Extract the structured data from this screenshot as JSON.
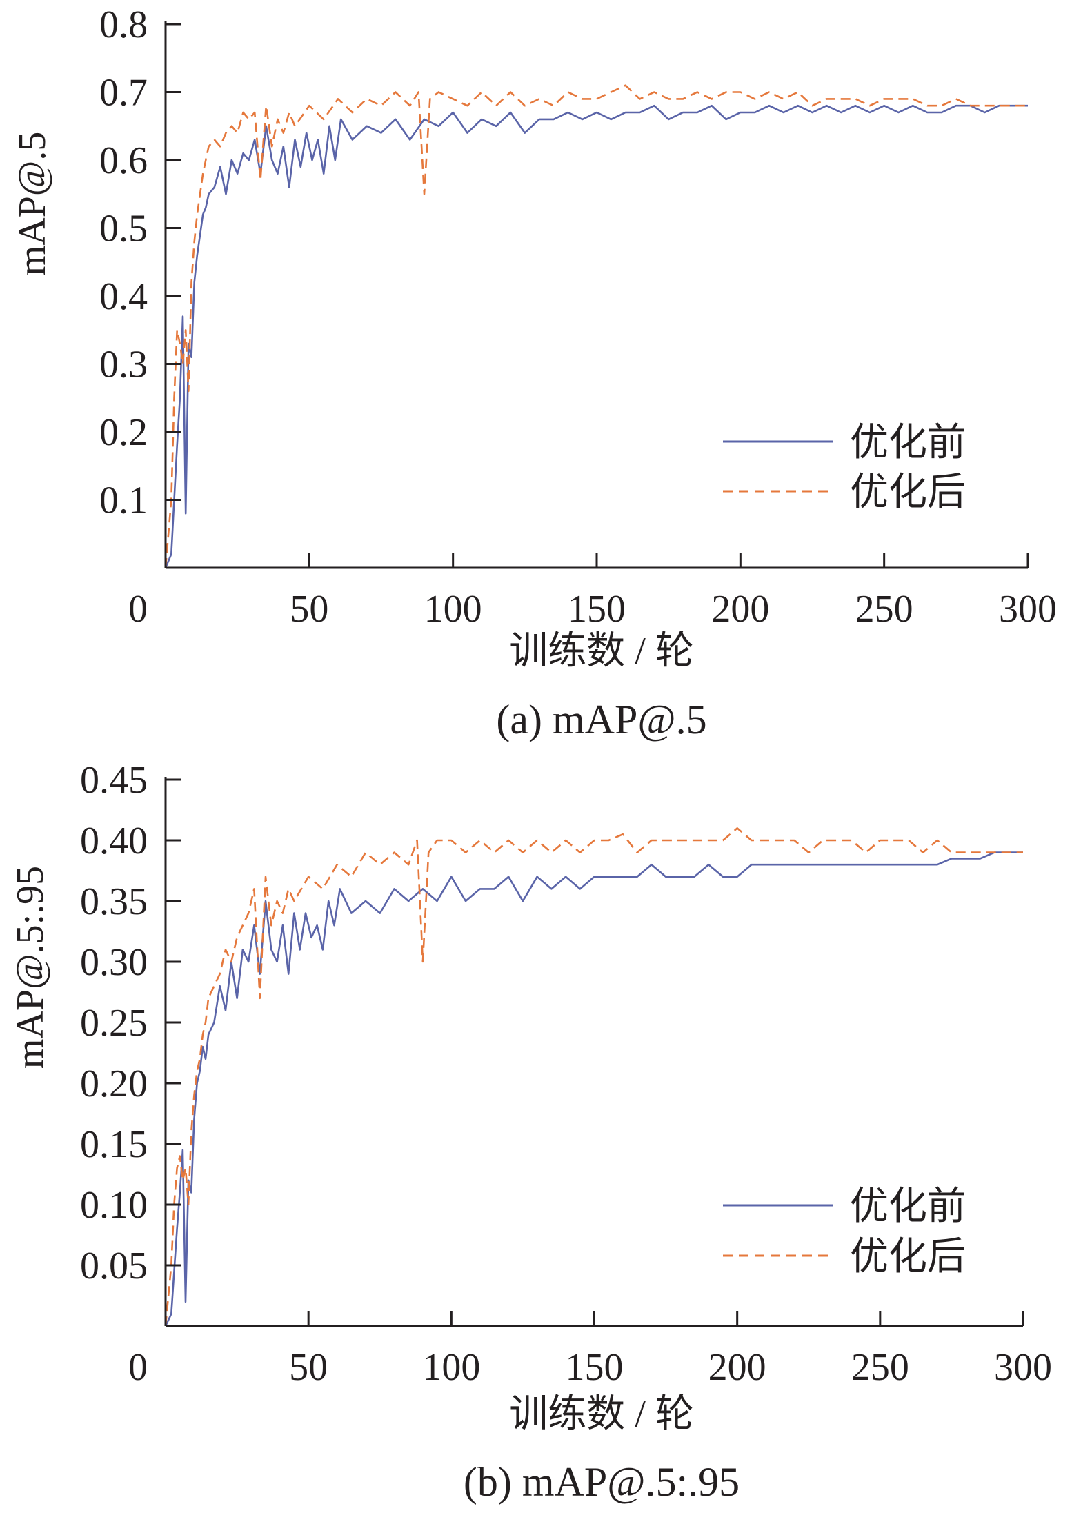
{
  "colors": {
    "before": "#5a64a8",
    "after": "#e5783c",
    "axis": "#231f20"
  },
  "chart_data": [
    {
      "type": "line",
      "caption": "(a)  mAP@.5",
      "xlabel": "训练数 / 轮",
      "ylabel": "mAP@.5",
      "xlim": [
        0,
        300
      ],
      "ylim": [
        0,
        0.8
      ],
      "x_ticks": [
        0,
        50,
        100,
        150,
        200,
        250,
        300
      ],
      "x_tick_labels": [
        "0",
        "50",
        "100",
        "150",
        "200",
        "250",
        "300"
      ],
      "y_ticks": [
        0.1,
        0.2,
        0.3,
        0.4,
        0.5,
        0.6,
        0.7,
        0.8
      ],
      "y_tick_labels": [
        "0.1",
        "0.2",
        "0.3",
        "0.4",
        "0.5",
        "0.6",
        "0.7",
        "0.8"
      ],
      "legend_position": "lower-right",
      "grid": false,
      "series": [
        {
          "name": "优化前",
          "style": "solid",
          "color_key": "before",
          "x": [
            0,
            2,
            4,
            5,
            6,
            7,
            8,
            9,
            10,
            11,
            12,
            13,
            14,
            15,
            17,
            19,
            21,
            23,
            25,
            27,
            29,
            31,
            33,
            35,
            37,
            39,
            41,
            43,
            45,
            47,
            49,
            51,
            53,
            55,
            57,
            59,
            61,
            65,
            70,
            75,
            80,
            85,
            90,
            95,
            100,
            105,
            110,
            115,
            120,
            125,
            130,
            135,
            140,
            145,
            150,
            155,
            160,
            165,
            170,
            175,
            180,
            185,
            190,
            195,
            200,
            205,
            210,
            215,
            220,
            225,
            230,
            235,
            240,
            245,
            250,
            255,
            260,
            265,
            270,
            275,
            280,
            285,
            290,
            295,
            300
          ],
          "y": [
            0.0,
            0.02,
            0.18,
            0.25,
            0.37,
            0.08,
            0.33,
            0.31,
            0.42,
            0.46,
            0.49,
            0.52,
            0.53,
            0.55,
            0.56,
            0.59,
            0.55,
            0.6,
            0.58,
            0.61,
            0.6,
            0.63,
            0.58,
            0.65,
            0.6,
            0.58,
            0.62,
            0.56,
            0.63,
            0.59,
            0.64,
            0.6,
            0.63,
            0.58,
            0.65,
            0.6,
            0.66,
            0.63,
            0.65,
            0.64,
            0.66,
            0.63,
            0.66,
            0.65,
            0.67,
            0.64,
            0.66,
            0.65,
            0.67,
            0.64,
            0.66,
            0.66,
            0.67,
            0.66,
            0.67,
            0.66,
            0.67,
            0.67,
            0.68,
            0.66,
            0.67,
            0.67,
            0.68,
            0.66,
            0.67,
            0.67,
            0.68,
            0.67,
            0.68,
            0.67,
            0.68,
            0.67,
            0.68,
            0.67,
            0.68,
            0.67,
            0.68,
            0.67,
            0.67,
            0.68,
            0.68,
            0.67,
            0.68,
            0.68,
            0.68
          ]
        },
        {
          "name": "优化后",
          "style": "dashed",
          "color_key": "after",
          "x": [
            0,
            2,
            3,
            4,
            5,
            6,
            7,
            8,
            9,
            10,
            11,
            12,
            13,
            14,
            15,
            17,
            19,
            21,
            23,
            25,
            27,
            29,
            31,
            33,
            35,
            37,
            39,
            41,
            43,
            45,
            50,
            55,
            60,
            65,
            70,
            75,
            80,
            85,
            88,
            90,
            92,
            95,
            100,
            105,
            110,
            115,
            120,
            125,
            130,
            135,
            140,
            145,
            150,
            155,
            160,
            165,
            170,
            175,
            180,
            185,
            190,
            195,
            200,
            205,
            210,
            215,
            220,
            225,
            230,
            235,
            240,
            245,
            250,
            255,
            260,
            265,
            270,
            275,
            280,
            285,
            290,
            295,
            300
          ],
          "y": [
            0.0,
            0.1,
            0.25,
            0.35,
            0.33,
            0.3,
            0.35,
            0.26,
            0.42,
            0.48,
            0.52,
            0.55,
            0.58,
            0.6,
            0.62,
            0.63,
            0.62,
            0.64,
            0.65,
            0.64,
            0.67,
            0.66,
            0.67,
            0.57,
            0.68,
            0.62,
            0.66,
            0.64,
            0.67,
            0.65,
            0.68,
            0.66,
            0.69,
            0.67,
            0.69,
            0.68,
            0.7,
            0.68,
            0.7,
            0.55,
            0.69,
            0.7,
            0.69,
            0.68,
            0.7,
            0.68,
            0.7,
            0.68,
            0.69,
            0.68,
            0.7,
            0.69,
            0.69,
            0.7,
            0.71,
            0.69,
            0.7,
            0.69,
            0.69,
            0.7,
            0.69,
            0.7,
            0.7,
            0.69,
            0.7,
            0.69,
            0.7,
            0.68,
            0.69,
            0.69,
            0.69,
            0.68,
            0.69,
            0.69,
            0.69,
            0.68,
            0.68,
            0.69,
            0.68,
            0.68,
            0.68,
            0.68,
            0.68
          ]
        }
      ]
    },
    {
      "type": "line",
      "caption": "(b)  mAP@.5:.95",
      "xlabel": "训练数 / 轮",
      "ylabel": "mAP@.5:.95",
      "xlim": [
        0,
        300
      ],
      "ylim": [
        0,
        0.45
      ],
      "x_ticks": [
        0,
        50,
        100,
        150,
        200,
        250,
        300
      ],
      "x_tick_labels": [
        "0",
        "50",
        "100",
        "150",
        "200",
        "250",
        "300"
      ],
      "y_ticks": [
        0.05,
        0.1,
        0.15,
        0.2,
        0.25,
        0.3,
        0.35,
        0.4,
        0.45
      ],
      "y_tick_labels": [
        "0.05",
        "0.10",
        "0.15",
        "0.20",
        "0.25",
        "0.30",
        "0.35",
        "0.40",
        "0.45"
      ],
      "legend_position": "lower-right",
      "grid": false,
      "series": [
        {
          "name": "优化前",
          "style": "solid",
          "color_key": "before",
          "x": [
            0,
            2,
            4,
            5,
            6,
            7,
            8,
            9,
            10,
            11,
            12,
            13,
            14,
            15,
            17,
            19,
            21,
            23,
            25,
            27,
            29,
            31,
            33,
            35,
            37,
            39,
            41,
            43,
            45,
            47,
            49,
            51,
            53,
            55,
            57,
            59,
            61,
            65,
            70,
            75,
            80,
            85,
            90,
            95,
            100,
            105,
            110,
            115,
            120,
            125,
            130,
            135,
            140,
            145,
            150,
            155,
            160,
            165,
            170,
            175,
            180,
            185,
            190,
            195,
            200,
            205,
            210,
            215,
            220,
            225,
            230,
            235,
            240,
            245,
            250,
            255,
            260,
            265,
            270,
            275,
            280,
            285,
            290,
            295,
            300
          ],
          "y": [
            0.0,
            0.01,
            0.08,
            0.11,
            0.145,
            0.02,
            0.12,
            0.11,
            0.17,
            0.2,
            0.21,
            0.23,
            0.22,
            0.24,
            0.25,
            0.28,
            0.26,
            0.3,
            0.27,
            0.31,
            0.3,
            0.33,
            0.29,
            0.35,
            0.31,
            0.3,
            0.33,
            0.29,
            0.34,
            0.31,
            0.34,
            0.32,
            0.33,
            0.31,
            0.35,
            0.33,
            0.36,
            0.34,
            0.35,
            0.34,
            0.36,
            0.35,
            0.36,
            0.35,
            0.37,
            0.35,
            0.36,
            0.36,
            0.37,
            0.35,
            0.37,
            0.36,
            0.37,
            0.36,
            0.37,
            0.37,
            0.37,
            0.37,
            0.38,
            0.37,
            0.37,
            0.37,
            0.38,
            0.37,
            0.37,
            0.38,
            0.38,
            0.38,
            0.38,
            0.38,
            0.38,
            0.38,
            0.38,
            0.38,
            0.38,
            0.38,
            0.38,
            0.38,
            0.38,
            0.385,
            0.385,
            0.385,
            0.39,
            0.39,
            0.39
          ]
        },
        {
          "name": "优化后",
          "style": "dashed",
          "color_key": "after",
          "x": [
            0,
            2,
            3,
            4,
            5,
            6,
            7,
            8,
            9,
            10,
            11,
            12,
            13,
            14,
            15,
            17,
            19,
            21,
            23,
            25,
            27,
            29,
            31,
            33,
            35,
            37,
            39,
            41,
            43,
            45,
            50,
            55,
            60,
            65,
            70,
            75,
            80,
            85,
            88,
            90,
            92,
            95,
            100,
            105,
            110,
            115,
            120,
            125,
            130,
            135,
            140,
            145,
            150,
            155,
            160,
            165,
            170,
            175,
            180,
            185,
            190,
            195,
            200,
            205,
            210,
            215,
            220,
            225,
            230,
            235,
            240,
            245,
            250,
            255,
            260,
            265,
            270,
            275,
            280,
            285,
            290,
            295,
            300
          ],
          "y": [
            0.0,
            0.05,
            0.1,
            0.13,
            0.14,
            0.12,
            0.13,
            0.1,
            0.16,
            0.19,
            0.21,
            0.22,
            0.24,
            0.25,
            0.27,
            0.28,
            0.29,
            0.31,
            0.3,
            0.32,
            0.33,
            0.34,
            0.36,
            0.27,
            0.37,
            0.33,
            0.35,
            0.34,
            0.36,
            0.35,
            0.37,
            0.36,
            0.38,
            0.37,
            0.39,
            0.38,
            0.39,
            0.38,
            0.4,
            0.3,
            0.39,
            0.4,
            0.4,
            0.39,
            0.4,
            0.39,
            0.4,
            0.39,
            0.4,
            0.39,
            0.4,
            0.39,
            0.4,
            0.4,
            0.405,
            0.39,
            0.4,
            0.4,
            0.4,
            0.4,
            0.4,
            0.4,
            0.41,
            0.4,
            0.4,
            0.4,
            0.4,
            0.39,
            0.4,
            0.4,
            0.4,
            0.39,
            0.4,
            0.4,
            0.4,
            0.39,
            0.4,
            0.39,
            0.39,
            0.39,
            0.39,
            0.39,
            0.39
          ]
        }
      ]
    }
  ]
}
